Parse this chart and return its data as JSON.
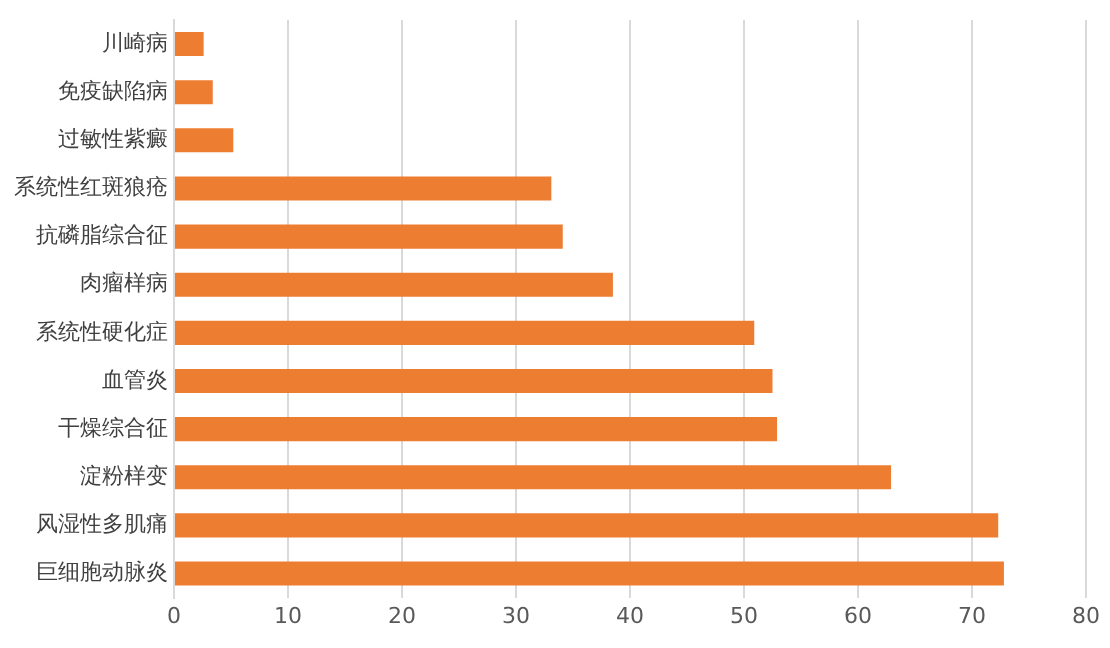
{
  "chart_data": {
    "type": "bar",
    "orientation": "horizontal",
    "categories": [
      "川崎病",
      "免疫缺陷病",
      "过敏性紫癜",
      "系统性红斑狼疮",
      "抗磷脂综合征",
      "肉瘤样病",
      "系统性硬化症",
      "血管炎",
      "干燥综合征",
      "淀粉样变",
      "风湿性多肌痛",
      "巨细胞动脉炎"
    ],
    "values": [
      2.6,
      3.4,
      5.2,
      33.1,
      34.1,
      38.5,
      50.9,
      52.5,
      52.9,
      62.9,
      72.3,
      72.8
    ],
    "color": "#ed7d31",
    "xlim": [
      0,
      80
    ],
    "xticks": [
      0,
      10,
      20,
      30,
      40,
      50,
      60,
      70,
      80
    ],
    "grid": "x"
  }
}
